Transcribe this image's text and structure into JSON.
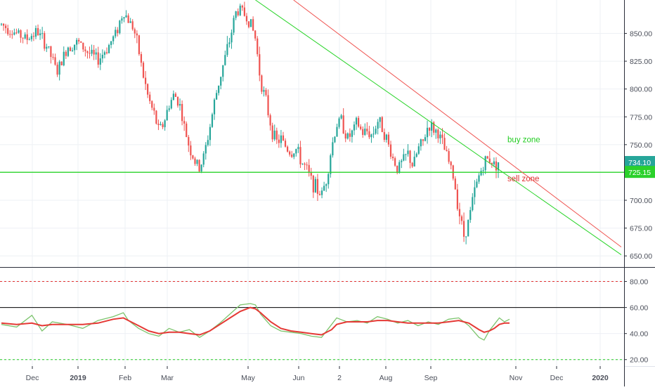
{
  "chart_data": [
    {
      "type": "candlestick",
      "x_labels": [
        "Dec",
        "2019",
        "Feb",
        "Mar",
        "May",
        "Jun",
        "2",
        "Aug",
        "Sep",
        "Nov",
        "Dec",
        "2020"
      ],
      "y_ticks": [
        "650.00",
        "675.00",
        "700.00",
        "725.00",
        "750.00",
        "775.00",
        "800.00",
        "825.00",
        "850.00"
      ],
      "ylim": [
        640,
        880
      ],
      "price_path": [
        [
          0,
          858
        ],
        [
          3,
          850
        ],
        [
          5,
          845
        ],
        [
          7,
          852
        ],
        [
          9,
          838
        ],
        [
          11,
          815
        ],
        [
          13,
          838
        ],
        [
          15,
          842
        ],
        [
          17,
          833
        ],
        [
          19,
          826
        ],
        [
          21,
          838
        ],
        [
          22.5,
          850
        ],
        [
          24,
          870
        ],
        [
          25,
          862
        ],
        [
          26,
          855
        ],
        [
          27,
          835
        ],
        [
          28,
          810
        ],
        [
          29,
          790
        ],
        [
          30,
          778
        ],
        [
          31,
          762
        ],
        [
          32,
          770
        ],
        [
          33,
          786
        ],
        [
          34,
          795
        ],
        [
          35,
          788
        ],
        [
          36,
          765
        ],
        [
          37,
          748
        ],
        [
          38,
          735
        ],
        [
          39,
          728
        ],
        [
          40,
          742
        ],
        [
          41,
          765
        ],
        [
          42,
          790
        ],
        [
          43,
          810
        ],
        [
          44,
          828
        ],
        [
          45,
          845
        ],
        [
          46,
          868
        ],
        [
          47,
          872
        ],
        [
          48,
          866
        ],
        [
          49,
          860
        ],
        [
          50,
          845
        ],
        [
          51,
          808
        ],
        [
          52,
          790
        ],
        [
          53,
          768
        ],
        [
          54,
          752
        ],
        [
          55,
          755
        ],
        [
          56,
          748
        ],
        [
          57,
          742
        ],
        [
          58,
          746
        ],
        [
          59,
          735
        ],
        [
          60,
          728
        ],
        [
          61,
          718
        ],
        [
          62,
          710
        ],
        [
          63,
          705
        ],
        [
          64,
          720
        ],
        [
          65,
          748
        ],
        [
          66,
          768
        ],
        [
          67,
          772
        ],
        [
          68,
          755
        ],
        [
          69,
          760
        ],
        [
          70,
          770
        ],
        [
          71,
          760
        ],
        [
          72,
          762
        ],
        [
          73,
          758
        ],
        [
          74,
          772
        ],
        [
          75,
          766
        ],
        [
          76,
          752
        ],
        [
          77,
          738
        ],
        [
          78,
          728
        ],
        [
          79,
          735
        ],
        [
          80,
          742
        ],
        [
          81,
          730
        ],
        [
          82,
          746
        ],
        [
          83,
          752
        ],
        [
          84,
          768
        ],
        [
          85,
          764
        ],
        [
          86,
          760
        ],
        [
          87,
          748
        ],
        [
          88,
          735
        ],
        [
          89,
          720
        ],
        [
          90,
          692
        ],
        [
          91,
          668
        ],
        [
          92,
          682
        ],
        [
          93,
          706
        ],
        [
          94,
          722
        ],
        [
          95,
          734
        ],
        [
          96,
          738
        ],
        [
          97,
          732
        ],
        [
          97.8,
          734.1
        ]
      ],
      "annotations": [
        {
          "text": "buy zone",
          "color": "#22cc22"
        },
        {
          "text": "sell zone",
          "color": "#e03030"
        }
      ],
      "horizontal_line": {
        "value": 725.15,
        "color": "#2ad42a"
      },
      "price_labels": [
        {
          "text": "734.10",
          "value": 734.1,
          "bg": "#26a69a"
        },
        {
          "text": "725.15",
          "value": 725.15,
          "bg": "#2bd12b"
        }
      ],
      "trendlines": [
        {
          "color": "#2ad42a",
          "from": [
            50,
            880
          ],
          "to": [
            122,
            651
          ]
        },
        {
          "color": "#ef5350",
          "from": [
            57.5,
            880
          ],
          "to": [
            122,
            658
          ]
        }
      ],
      "grid": true,
      "colors": {
        "up": "#26a69a",
        "down": "#ef5350"
      }
    },
    {
      "type": "line",
      "title": "",
      "y_ticks": [
        "20.00",
        "40.00",
        "60.00",
        "80.00"
      ],
      "ylim": [
        15,
        90
      ],
      "levels": [
        {
          "value": 80,
          "color": "#e03030",
          "style": "dashed"
        },
        {
          "value": 60,
          "color": "#000000",
          "style": "solid"
        },
        {
          "value": 20,
          "color": "#22cc22",
          "style": "dashed"
        }
      ],
      "series": [
        {
          "color": "#7cc46d",
          "values": [
            [
              0,
              47
            ],
            [
              3,
              45
            ],
            [
              6,
              54
            ],
            [
              8,
              42
            ],
            [
              10,
              49
            ],
            [
              13,
              47
            ],
            [
              16,
              44
            ],
            [
              19,
              50
            ],
            [
              22,
              53
            ],
            [
              24,
              56
            ],
            [
              25,
              50
            ],
            [
              27,
              44
            ],
            [
              29,
              40
            ],
            [
              31,
              38
            ],
            [
              33,
              44
            ],
            [
              35,
              41
            ],
            [
              37,
              43
            ],
            [
              39,
              37
            ],
            [
              41,
              42
            ],
            [
              43,
              48
            ],
            [
              45,
              55
            ],
            [
              47,
              62
            ],
            [
              49,
              63
            ],
            [
              50,
              62
            ],
            [
              51,
              55
            ],
            [
              53,
              46
            ],
            [
              55,
              42
            ],
            [
              57,
              41
            ],
            [
              59,
              40
            ],
            [
              61,
              38
            ],
            [
              63,
              37
            ],
            [
              65,
              47
            ],
            [
              66,
              52
            ],
            [
              68,
              49
            ],
            [
              70,
              50
            ],
            [
              72,
              48
            ],
            [
              74,
              53
            ],
            [
              76,
              51
            ],
            [
              78,
              48
            ],
            [
              80,
              50
            ],
            [
              82,
              46
            ],
            [
              84,
              49
            ],
            [
              86,
              47
            ],
            [
              88,
              51
            ],
            [
              90,
              52
            ],
            [
              92,
              46
            ],
            [
              94,
              37
            ],
            [
              95,
              35
            ],
            [
              96,
              42
            ],
            [
              97,
              47
            ],
            [
              98,
              52
            ],
            [
              99,
              49
            ],
            [
              100,
              51
            ]
          ]
        },
        {
          "color": "#e53935",
          "values": [
            [
              0,
              48
            ],
            [
              3,
              47
            ],
            [
              6,
              48
            ],
            [
              8,
              46
            ],
            [
              10,
              47
            ],
            [
              13,
              47
            ],
            [
              16,
              47
            ],
            [
              19,
              48
            ],
            [
              22,
              51
            ],
            [
              24,
              52
            ],
            [
              25,
              50
            ],
            [
              27,
              46
            ],
            [
              29,
              42
            ],
            [
              31,
              40
            ],
            [
              33,
              41
            ],
            [
              35,
              41
            ],
            [
              37,
              40
            ],
            [
              39,
              39
            ],
            [
              41,
              42
            ],
            [
              43,
              47
            ],
            [
              45,
              52
            ],
            [
              47,
              57
            ],
            [
              49,
              60
            ],
            [
              50,
              59
            ],
            [
              51,
              56
            ],
            [
              53,
              49
            ],
            [
              55,
              44
            ],
            [
              57,
              42
            ],
            [
              59,
              41
            ],
            [
              61,
              40
            ],
            [
              63,
              39
            ],
            [
              65,
              43
            ],
            [
              66,
              47
            ],
            [
              68,
              49
            ],
            [
              70,
              49
            ],
            [
              72,
              49
            ],
            [
              74,
              50
            ],
            [
              76,
              50
            ],
            [
              78,
              49
            ],
            [
              80,
              48
            ],
            [
              82,
              48
            ],
            [
              84,
              48
            ],
            [
              86,
              48
            ],
            [
              88,
              49
            ],
            [
              90,
              50
            ],
            [
              92,
              48
            ],
            [
              94,
              43
            ],
            [
              95,
              41
            ],
            [
              96,
              42
            ],
            [
              97,
              44
            ],
            [
              98,
              47
            ],
            [
              99,
              48
            ],
            [
              100,
              48
            ]
          ]
        }
      ],
      "grid": true
    }
  ]
}
